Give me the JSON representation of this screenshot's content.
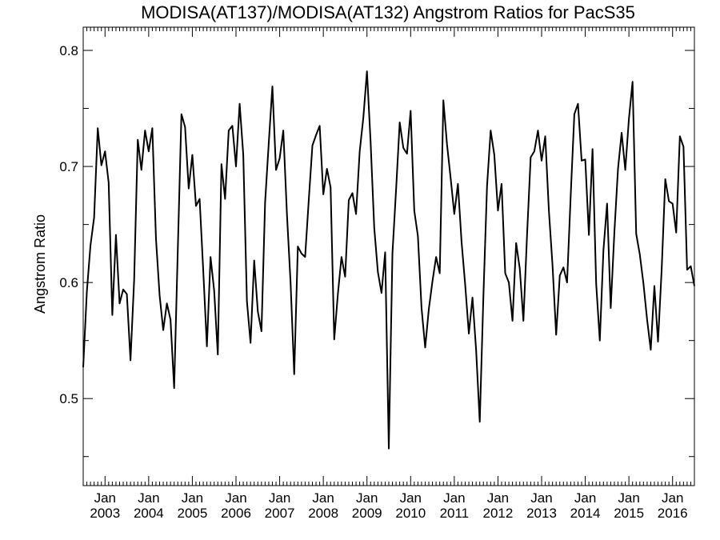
{
  "chart_data": {
    "type": "line",
    "title": "MODISA(AT137)/MODISA(AT132)  Angstrom Ratios for PacS35",
    "xlabel": "",
    "ylabel": "Angstrom Ratio",
    "x_range": [
      "2002-07-01",
      "2016-07-01"
    ],
    "ylim": [
      0.425,
      0.82
    ],
    "y_ticks": [
      0.5,
      0.6,
      0.7,
      0.8
    ],
    "y_tick_labels": [
      "0.5",
      "0.6",
      "0.7",
      "0.8"
    ],
    "x_tick_dates": [
      "2003-01-01",
      "2004-01-01",
      "2005-01-01",
      "2006-01-01",
      "2007-01-01",
      "2008-01-01",
      "2009-01-01",
      "2010-01-01",
      "2011-01-01",
      "2012-01-01",
      "2013-01-01",
      "2014-01-01",
      "2015-01-01",
      "2016-01-01"
    ],
    "x_tick_labels": [
      {
        "month": "Jan",
        "year": "2003"
      },
      {
        "month": "Jan",
        "year": "2004"
      },
      {
        "month": "Jan",
        "year": "2005"
      },
      {
        "month": "Jan",
        "year": "2006"
      },
      {
        "month": "Jan",
        "year": "2007"
      },
      {
        "month": "Jan",
        "year": "2008"
      },
      {
        "month": "Jan",
        "year": "2009"
      },
      {
        "month": "Jan",
        "year": "2010"
      },
      {
        "month": "Jan",
        "year": "2011"
      },
      {
        "month": "Jan",
        "year": "2012"
      },
      {
        "month": "Jan",
        "year": "2013"
      },
      {
        "month": "Jan",
        "year": "2014"
      },
      {
        "month": "Jan",
        "year": "2015"
      },
      {
        "month": "Jan",
        "year": "2016"
      }
    ],
    "grid": false,
    "line_color": "#000000",
    "series": [
      {
        "x": [
          "2002-07",
          "2002-08",
          "2002-09",
          "2002-10",
          "2002-11",
          "2002-12",
          "2003-01",
          "2003-02",
          "2003-03",
          "2003-04",
          "2003-05",
          "2003-06",
          "2003-07",
          "2003-08",
          "2003-09",
          "2003-10",
          "2003-11",
          "2003-12",
          "2004-01",
          "2004-02",
          "2004-03",
          "2004-04",
          "2004-05",
          "2004-06",
          "2004-07",
          "2004-08",
          "2004-09",
          "2004-10",
          "2004-11",
          "2004-12",
          "2005-01",
          "2005-02",
          "2005-03",
          "2005-04",
          "2005-05",
          "2005-06",
          "2005-07",
          "2005-08",
          "2005-09",
          "2005-10",
          "2005-11",
          "2005-12",
          "2006-01",
          "2006-02",
          "2006-03",
          "2006-04",
          "2006-05",
          "2006-06",
          "2006-07",
          "2006-08",
          "2006-09",
          "2006-10",
          "2006-11",
          "2006-12",
          "2007-01",
          "2007-02",
          "2007-03",
          "2007-04",
          "2007-05",
          "2007-06",
          "2007-07",
          "2007-08",
          "2007-09",
          "2007-10",
          "2007-11",
          "2007-12",
          "2008-01",
          "2008-02",
          "2008-03",
          "2008-04",
          "2008-05",
          "2008-06",
          "2008-07",
          "2008-08",
          "2008-09",
          "2008-10",
          "2008-11",
          "2008-12",
          "2009-01",
          "2009-02",
          "2009-03",
          "2009-04",
          "2009-05",
          "2009-06",
          "2009-07",
          "2009-08",
          "2009-09",
          "2009-10",
          "2009-11",
          "2009-12",
          "2010-01",
          "2010-02",
          "2010-03",
          "2010-04",
          "2010-05",
          "2010-06",
          "2010-07",
          "2010-08",
          "2010-09",
          "2010-10",
          "2010-11",
          "2010-12",
          "2011-01",
          "2011-02",
          "2011-03",
          "2011-04",
          "2011-05",
          "2011-06",
          "2011-07",
          "2011-08",
          "2011-09",
          "2011-10",
          "2011-11",
          "2011-12",
          "2012-01",
          "2012-02",
          "2012-03",
          "2012-04",
          "2012-05",
          "2012-06",
          "2012-07",
          "2012-08",
          "2012-09",
          "2012-10",
          "2012-11",
          "2012-12",
          "2013-01",
          "2013-02",
          "2013-03",
          "2013-04",
          "2013-05",
          "2013-06",
          "2013-07",
          "2013-08",
          "2013-09",
          "2013-10",
          "2013-11",
          "2013-12",
          "2014-01",
          "2014-02",
          "2014-03",
          "2014-04",
          "2014-05",
          "2014-06",
          "2014-07",
          "2014-08",
          "2014-09",
          "2014-10",
          "2014-11",
          "2014-12",
          "2015-01",
          "2015-02",
          "2015-03",
          "2015-04",
          "2015-05",
          "2015-06",
          "2015-07",
          "2015-08",
          "2015-09",
          "2015-10",
          "2015-11",
          "2015-12",
          "2016-01",
          "2016-02",
          "2016-03",
          "2016-04",
          "2016-05",
          "2016-06",
          "2016-07"
        ],
        "values": [
          0.527,
          0.592,
          0.632,
          0.656,
          0.733,
          0.701,
          0.713,
          0.686,
          0.572,
          0.641,
          0.582,
          0.594,
          0.59,
          0.533,
          0.602,
          0.723,
          0.697,
          0.731,
          0.713,
          0.733,
          0.638,
          0.589,
          0.559,
          0.582,
          0.568,
          0.509,
          0.628,
          0.745,
          0.734,
          0.681,
          0.71,
          0.666,
          0.672,
          0.61,
          0.545,
          0.622,
          0.593,
          0.538,
          0.702,
          0.672,
          0.731,
          0.735,
          0.7,
          0.754,
          0.71,
          0.584,
          0.548,
          0.619,
          0.575,
          0.558,
          0.669,
          0.72,
          0.769,
          0.697,
          0.707,
          0.731,
          0.659,
          0.6,
          0.521,
          0.631,
          0.625,
          0.622,
          0.671,
          0.718,
          0.727,
          0.735,
          0.676,
          0.698,
          0.682,
          0.551,
          0.59,
          0.622,
          0.605,
          0.671,
          0.677,
          0.659,
          0.713,
          0.742,
          0.782,
          0.721,
          0.647,
          0.609,
          0.591,
          0.626,
          0.457,
          0.625,
          0.68,
          0.738,
          0.716,
          0.711,
          0.748,
          0.662,
          0.64,
          0.578,
          0.544,
          0.577,
          0.601,
          0.622,
          0.608,
          0.757,
          0.719,
          0.69,
          0.659,
          0.685,
          0.635,
          0.598,
          0.556,
          0.587,
          0.542,
          0.48,
          0.588,
          0.683,
          0.731,
          0.71,
          0.662,
          0.685,
          0.608,
          0.6,
          0.567,
          0.634,
          0.612,
          0.567,
          0.641,
          0.708,
          0.713,
          0.731,
          0.705,
          0.726,
          0.662,
          0.615,
          0.555,
          0.606,
          0.613,
          0.6,
          0.675,
          0.745,
          0.754,
          0.705,
          0.706,
          0.641,
          0.715,
          0.599,
          0.55,
          0.628,
          0.668,
          0.578,
          0.643,
          0.698,
          0.729,
          0.697,
          0.741,
          0.773,
          0.642,
          0.624,
          0.599,
          0.568,
          0.542,
          0.597,
          0.549,
          0.611,
          0.689,
          0.67,
          0.668,
          0.643,
          0.726,
          0.717,
          0.611,
          0.614,
          0.597
        ]
      }
    ]
  }
}
